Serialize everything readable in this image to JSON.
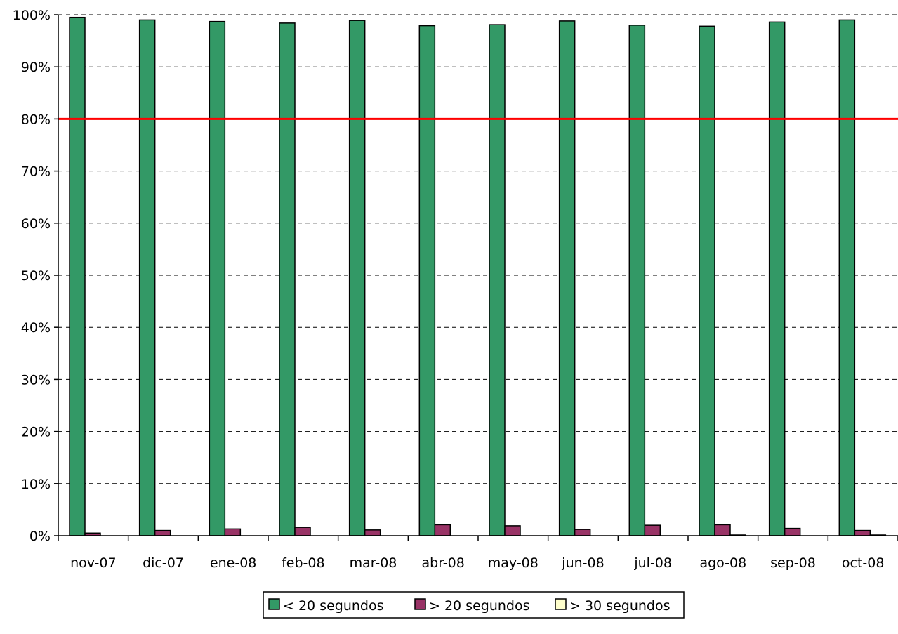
{
  "chart_data": {
    "type": "bar",
    "title": "",
    "xlabel": "",
    "ylabel": "",
    "categories": [
      "nov-07",
      "dic-07",
      "ene-08",
      "feb-08",
      "mar-08",
      "abr-08",
      "may-08",
      "jun-08",
      "jul-08",
      "ago-08",
      "sep-08",
      "oct-08"
    ],
    "series": [
      {
        "name": "< 20 segundos",
        "color": "#339966",
        "values": [
          99.5,
          99.0,
          98.7,
          98.4,
          98.9,
          97.9,
          98.1,
          98.8,
          98.0,
          97.8,
          98.6,
          99.0
        ]
      },
      {
        "name": "> 20 segundos",
        "color": "#993366",
        "values": [
          0.5,
          1.0,
          1.3,
          1.6,
          1.1,
          2.1,
          1.9,
          1.2,
          2.0,
          2.1,
          1.4,
          1.0
        ]
      },
      {
        "name": "> 30 segundos",
        "color": "#ffffcc",
        "values": [
          0.0,
          0.0,
          0.0,
          0.0,
          0.0,
          0.0,
          0.0,
          0.0,
          0.0,
          0.1,
          0.0,
          0.1
        ]
      }
    ],
    "ylim": [
      0,
      100
    ],
    "yticks": [
      "0%",
      "10%",
      "20%",
      "30%",
      "40%",
      "50%",
      "60%",
      "70%",
      "80%",
      "90%",
      "100%"
    ],
    "grid": true,
    "reference_line": {
      "value": 80,
      "color": "#ff0000"
    },
    "legend_position": "bottom"
  }
}
